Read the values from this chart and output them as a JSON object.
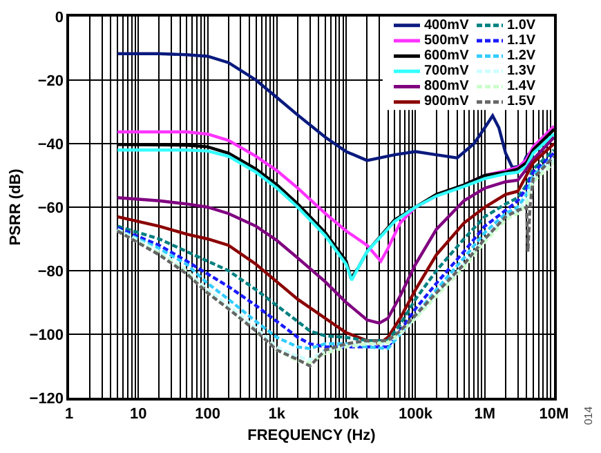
{
  "chart_data": {
    "type": "line",
    "xlabel": "FREQUENCY (Hz)",
    "ylabel": "PSRR (dB)",
    "log": "x",
    "grid": true,
    "legend": "top right",
    "xlim": [
      1,
      10000000
    ],
    "xticks": [
      {
        "value": 1,
        "label": "1"
      },
      {
        "value": 10,
        "label": "10"
      },
      {
        "value": 100,
        "label": "100"
      },
      {
        "value": 1000,
        "label": "1k"
      },
      {
        "value": 10000,
        "label": "10k"
      },
      {
        "value": 100000,
        "label": "100k"
      },
      {
        "value": 1000000,
        "label": "1M"
      },
      {
        "value": 10000000,
        "label": "10M"
      }
    ],
    "ylim": [
      -120,
      0
    ],
    "yticks": [
      {
        "value": -120,
        "label": "−120"
      },
      {
        "value": -100,
        "label": "−100"
      },
      {
        "value": -80,
        "label": "−80"
      },
      {
        "value": -60,
        "label": "−60"
      },
      {
        "value": -40,
        "label": "−40"
      },
      {
        "value": -20,
        "label": "−20"
      },
      0
    ],
    "annotations": [
      "014"
    ],
    "series": [
      {
        "name": "400mV",
        "color": "#0a1a7e",
        "line_style": "solid",
        "x": [
          5,
          20,
          50,
          100,
          200,
          500,
          1000,
          2000,
          5000,
          10000,
          20000,
          50000,
          100000,
          200000,
          400000,
          700000,
          1000000,
          1300000,
          1600000,
          2000000,
          2500000,
          3500000,
          4000000,
          5000000,
          7000000,
          10000000
        ],
        "values": [
          -11.7,
          -11.7,
          -12,
          -12.5,
          -14.5,
          -20,
          -25.5,
          -31,
          -38,
          -42.5,
          -45.3,
          -43.5,
          -42.5,
          -43.5,
          -44.5,
          -40,
          -35,
          -31.2,
          -35,
          -43,
          -47.5,
          -47,
          -44,
          -42,
          -38,
          -35
        ]
      },
      {
        "name": "500mV",
        "color": "#ff33ff",
        "line_style": "solid",
        "x": [
          5,
          50,
          100,
          200,
          500,
          1000,
          2000,
          5000,
          10000,
          20000,
          31600,
          40000,
          60000,
          100000,
          200000,
          500000,
          1000000,
          2000000,
          3000000,
          4000000,
          5000000,
          10000000
        ],
        "values": [
          -36.3,
          -36.3,
          -37,
          -39,
          -44,
          -48.5,
          -54,
          -62,
          -67.5,
          -72,
          -77,
          -73,
          -65,
          -60,
          -56.5,
          -53,
          -50,
          -48.5,
          -47.5,
          -45,
          -41,
          -34.5
        ]
      },
      {
        "name": "600mV",
        "color": "#000000",
        "line_style": "solid",
        "x": [
          5,
          50,
          100,
          200,
          500,
          1000,
          2000,
          5000,
          10000,
          11700,
          15000,
          20000,
          50000,
          100000,
          200000,
          500000,
          1000000,
          2000000,
          3000000,
          4000000,
          5000000,
          10000000
        ],
        "values": [
          -40.3,
          -40.5,
          -41,
          -43,
          -48,
          -53,
          -59,
          -68,
          -77,
          -82.4,
          -79,
          -74,
          -64,
          -60,
          -56,
          -53,
          -50,
          -49,
          -48,
          -46,
          -42,
          -35.5
        ]
      },
      {
        "name": "700mV",
        "color": "#33ffff",
        "line_style": "solid",
        "x": [
          5,
          50,
          100,
          200,
          500,
          1000,
          2000,
          5000,
          10000,
          12000,
          15000,
          20000,
          50000,
          100000,
          200000,
          500000,
          1000000,
          2000000,
          3000000,
          4000000,
          5000000,
          10000000
        ],
        "values": [
          -42,
          -42,
          -42.3,
          -44,
          -49,
          -54,
          -60,
          -69,
          -78,
          -83,
          -79,
          -74,
          -64.5,
          -60,
          -56.5,
          -53.5,
          -51,
          -49.5,
          -49,
          -47,
          -43,
          -37
        ]
      },
      {
        "name": "800mV",
        "color": "#800080",
        "line_style": "solid",
        "x": [
          5,
          20,
          50,
          100,
          200,
          500,
          1000,
          2000,
          5000,
          10000,
          20000,
          30000,
          40000,
          60000,
          100000,
          200000,
          500000,
          1000000,
          2000000,
          3000000,
          4000000,
          5000000,
          10000000
        ],
        "values": [
          -57,
          -58,
          -59,
          -60,
          -62,
          -66,
          -70.5,
          -76,
          -83.5,
          -90,
          -95.5,
          -96.5,
          -95,
          -88,
          -78,
          -67,
          -58,
          -54,
          -52,
          -51.5,
          -48,
          -45,
          -38
        ]
      },
      {
        "name": "900mV",
        "color": "#8b0000",
        "line_style": "solid",
        "x": [
          5,
          20,
          50,
          100,
          200,
          500,
          1000,
          2000,
          5000,
          10000,
          20000,
          30000,
          40000,
          60000,
          100000,
          200000,
          500000,
          1000000,
          2000000,
          3000000,
          4000000,
          5000000,
          10000000
        ],
        "values": [
          -63,
          -66,
          -68.5,
          -70,
          -72,
          -78,
          -83.5,
          -89,
          -95,
          -99.5,
          -102,
          -103,
          -101,
          -95,
          -86,
          -75,
          -65,
          -60,
          -56,
          -55,
          -50,
          -46,
          -40
        ]
      },
      {
        "name": "1.0V",
        "color": "#008080",
        "line_style": "dashed",
        "x": [
          5,
          20,
          50,
          100,
          200,
          500,
          1000,
          2000,
          3000,
          5000,
          10000,
          20000,
          40000,
          60000,
          100000,
          200000,
          500000,
          1000000,
          2000000,
          3000000,
          4000000,
          5000000,
          10000000
        ],
        "values": [
          -66,
          -70,
          -74,
          -77,
          -80,
          -86,
          -91,
          -96,
          -99,
          -100.5,
          -101,
          -102,
          -102,
          -97,
          -89,
          -80,
          -70,
          -63,
          -59,
          -57,
          -53,
          -48,
          -42
        ]
      },
      {
        "name": "1.1V",
        "color": "#1a1aff",
        "line_style": "dashed",
        "x": [
          5,
          20,
          50,
          100,
          200,
          500,
          1000,
          2000,
          3000,
          5000,
          10000,
          20000,
          40000,
          60000,
          100000,
          200000,
          500000,
          1000000,
          2000000,
          3000000,
          4000000,
          5000000,
          10000000
        ],
        "values": [
          -66.5,
          -72,
          -77,
          -81,
          -85,
          -91,
          -96,
          -101,
          -103,
          -104,
          -104,
          -104,
          -104,
          -99,
          -92,
          -84,
          -74,
          -66,
          -61,
          -58,
          -54,
          -49,
          -43
        ]
      },
      {
        "name": "1.2V",
        "color": "#33ccff",
        "line_style": "dashed",
        "x": [
          5,
          20,
          50,
          100,
          200,
          500,
          1000,
          2000,
          3000,
          5000,
          10000,
          20000,
          40000,
          60000,
          100000,
          200000,
          500000,
          1000000,
          2000000,
          3000000,
          4000000,
          5000000,
          10000000
        ],
        "values": [
          -67,
          -73,
          -78,
          -84,
          -89,
          -96,
          -101,
          -104,
          -104.5,
          -103,
          -103,
          -104,
          -104.5,
          -100,
          -94,
          -86,
          -76,
          -68,
          -62,
          -60,
          -56,
          -50,
          -44
        ]
      },
      {
        "name": "1.3V",
        "color": "#ccffff",
        "line_style": "dashed",
        "x": [
          5,
          20,
          50,
          100,
          200,
          500,
          1000,
          2000,
          3000,
          5000,
          10000,
          20000,
          40000,
          60000,
          100000,
          200000,
          500000,
          1000000,
          2000000,
          3000000,
          4000000,
          5000000,
          10000000
        ],
        "values": [
          -67,
          -74,
          -80,
          -86,
          -91,
          -98,
          -104,
          -107,
          -108,
          -105,
          -103.5,
          -103,
          -103,
          -100,
          -95,
          -88,
          -78,
          -70,
          -63,
          -61,
          -58,
          -51,
          -45
        ]
      },
      {
        "name": "1.4V",
        "color": "#ccffcc",
        "line_style": "dashed",
        "x": [
          5,
          20,
          50,
          100,
          200,
          500,
          1000,
          2000,
          3000,
          5000,
          10000,
          20000,
          40000,
          60000,
          100000,
          200000,
          500000,
          1000000,
          2000000,
          3000000,
          4000000,
          5000000,
          10000000
        ],
        "values": [
          -67.5,
          -74.5,
          -80.5,
          -87,
          -92,
          -99,
          -105,
          -108.5,
          -109,
          -106,
          -104,
          -103,
          -102.5,
          -99.5,
          -95,
          -88,
          -79,
          -71,
          -64,
          -62,
          -59,
          -52,
          -46
        ]
      },
      {
        "name": "1.5V",
        "color": "#666666",
        "line_style": "dashed",
        "x": [
          5,
          20,
          50,
          100,
          200,
          500,
          1000,
          2000,
          3000,
          5000,
          10000,
          20000,
          40000,
          60000,
          100000,
          200000,
          500000,
          1000000,
          2000000,
          3000000,
          4000000,
          4200000,
          4500000,
          5000000,
          10000000
        ],
        "values": [
          -67.5,
          -75,
          -81,
          -87,
          -92,
          -99,
          -105,
          -108,
          -110,
          -105,
          -103,
          -102,
          -102,
          -99,
          -94,
          -87,
          -78,
          -70,
          -63,
          -61,
          -60,
          -74,
          -60,
          -51,
          -44
        ]
      }
    ]
  }
}
